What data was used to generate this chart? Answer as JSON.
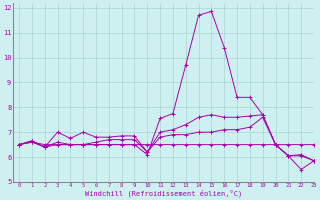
{
  "xlabel": "Windchill (Refroidissement éolien,°C)",
  "background_color": "#cff0f0",
  "grid_color": "#aad4d4",
  "line_color": "#aa00aa",
  "spine_color": "#888888",
  "xlim": [
    -0.5,
    23
  ],
  "ylim": [
    5,
    12.2
  ],
  "xticks": [
    0,
    1,
    2,
    3,
    4,
    5,
    6,
    7,
    8,
    9,
    10,
    11,
    12,
    13,
    14,
    15,
    16,
    17,
    18,
    19,
    20,
    21,
    22,
    23
  ],
  "yticks": [
    5,
    6,
    7,
    8,
    9,
    10,
    11,
    12
  ],
  "lines": [
    {
      "x": [
        0,
        1,
        2,
        3,
        4,
        5,
        6,
        7,
        8,
        9,
        10,
        11,
        12,
        13,
        14,
        15,
        16,
        17,
        18,
        19,
        20,
        21,
        22,
        23
      ],
      "y": [
        6.5,
        6.6,
        6.5,
        6.5,
        6.5,
        6.5,
        6.5,
        6.5,
        6.5,
        6.5,
        6.5,
        6.5,
        6.5,
        6.5,
        6.5,
        6.5,
        6.5,
        6.5,
        6.5,
        6.5,
        6.5,
        6.5,
        6.5,
        6.5
      ]
    },
    {
      "x": [
        0,
        1,
        2,
        3,
        4,
        5,
        6,
        7,
        8,
        9,
        10,
        11,
        12,
        13,
        14,
        15,
        16,
        17,
        18,
        19,
        20,
        21,
        22,
        23
      ],
      "y": [
        6.5,
        6.6,
        6.4,
        6.6,
        6.5,
        6.5,
        6.6,
        6.7,
        6.7,
        6.7,
        6.2,
        6.8,
        6.9,
        6.9,
        7.0,
        7.0,
        7.1,
        7.1,
        7.2,
        7.6,
        6.5,
        6.05,
        6.05,
        5.85
      ]
    },
    {
      "x": [
        0,
        1,
        2,
        3,
        4,
        5,
        6,
        7,
        8,
        9,
        10,
        11,
        12,
        13,
        14,
        15,
        16,
        17,
        18,
        19,
        20,
        21,
        22,
        23
      ],
      "y": [
        6.5,
        6.65,
        6.4,
        7.0,
        6.75,
        7.0,
        6.8,
        6.8,
        6.85,
        6.85,
        6.2,
        7.0,
        7.1,
        7.3,
        7.6,
        7.7,
        7.6,
        7.6,
        7.65,
        7.7,
        6.5,
        6.05,
        6.1,
        5.85
      ]
    },
    {
      "x": [
        0,
        1,
        2,
        3,
        4,
        5,
        6,
        7,
        8,
        9,
        10,
        11,
        12,
        13,
        14,
        15,
        16,
        17,
        18,
        19,
        20,
        21,
        22,
        23
      ],
      "y": [
        6.5,
        6.65,
        6.4,
        6.5,
        6.5,
        6.5,
        6.5,
        6.5,
        6.5,
        6.5,
        6.1,
        7.55,
        7.75,
        9.7,
        11.7,
        11.85,
        10.4,
        8.4,
        8.4,
        7.7,
        6.5,
        6.05,
        5.5,
        5.85
      ]
    }
  ]
}
